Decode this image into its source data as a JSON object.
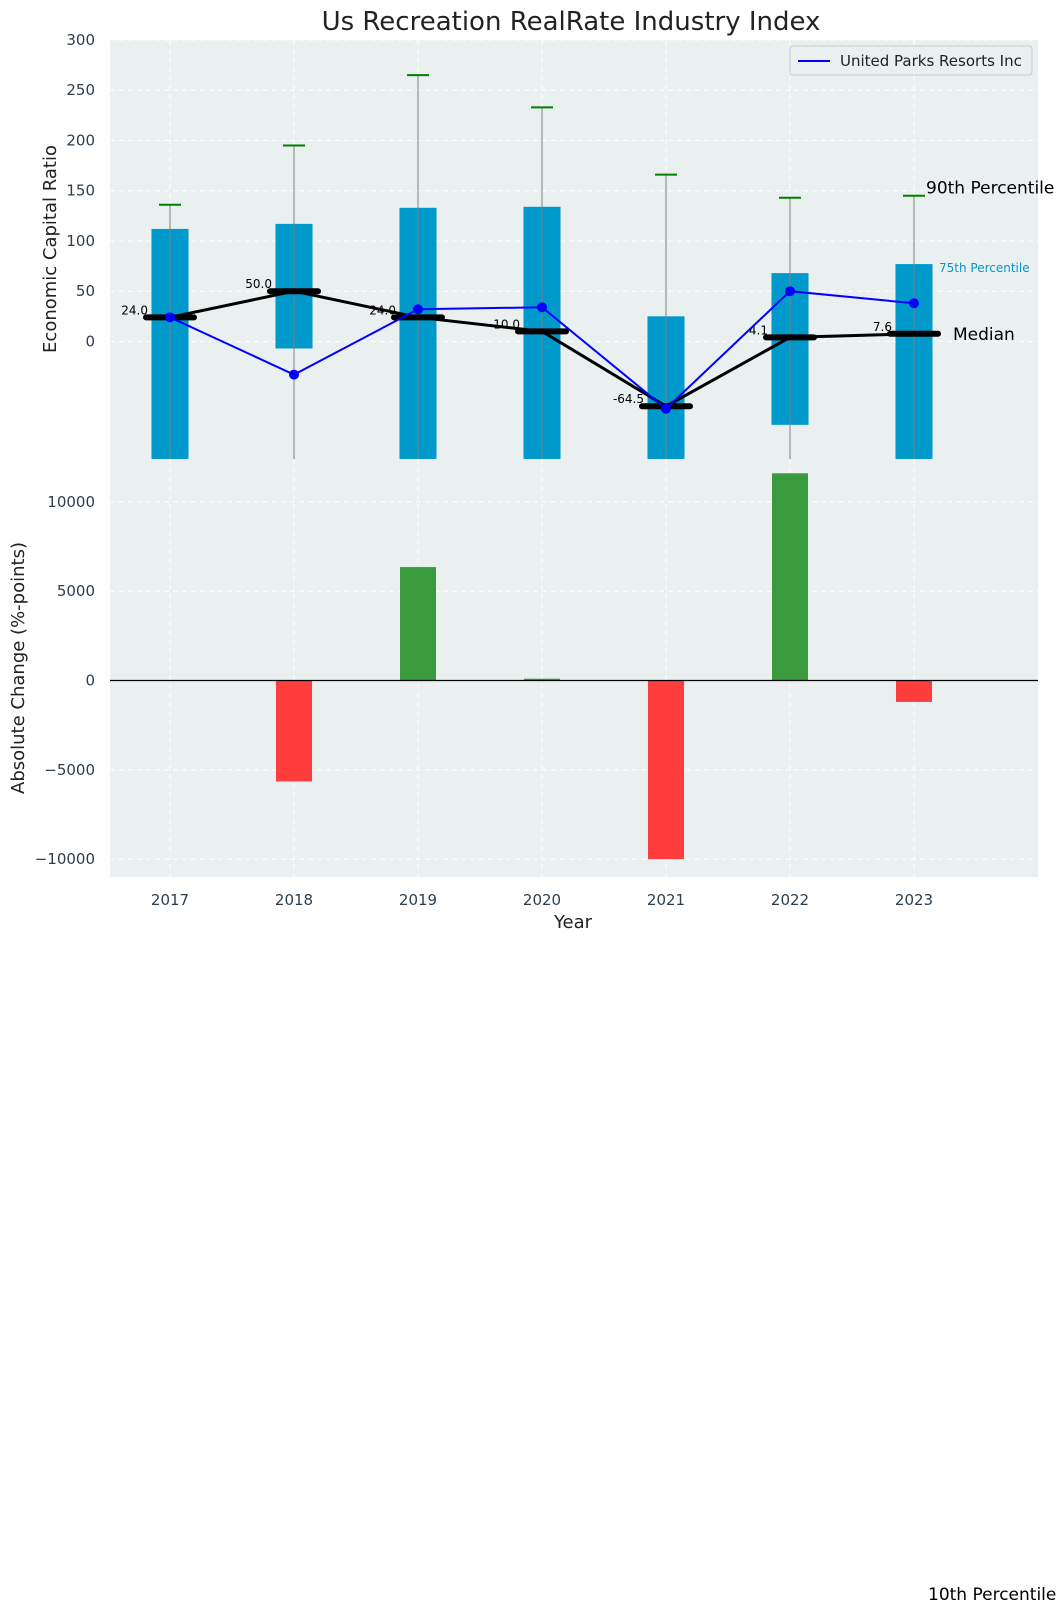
{
  "colors": {
    "panel_bg": "#EAEFF0",
    "grid": "#FFFFFF",
    "box": "#0099CC",
    "whisker": "#808080",
    "cap": "#008000",
    "median": "#000000",
    "company": "#0000FF",
    "positive": "#3A9B3D",
    "negative": "#FF3D3D",
    "tick_text": "#2C3E50",
    "label_75": "#0099CC"
  },
  "chart_data": [
    {
      "type": "box-line",
      "title": "Us Recreation RealRate Industry Index",
      "ylabel": "Economic Capital Ratio",
      "xlabel": "",
      "ylim": [
        -117,
        300
      ],
      "yticks": [
        0,
        50,
        100,
        150,
        200,
        250,
        300
      ],
      "categories": [
        "2017",
        "2018",
        "2019",
        "2020",
        "2021",
        "2022",
        "2023"
      ],
      "p10": [
        -117,
        -117,
        -117,
        -117,
        -117,
        -117,
        -117
      ],
      "p25": [
        -117,
        -7,
        -117,
        -117,
        -117,
        -83,
        -117
      ],
      "median": [
        24.0,
        50.0,
        24.0,
        10.0,
        -64.5,
        4.1,
        7.6
      ],
      "median_labels": [
        "24.0",
        "50.0",
        "24.0",
        "10.0",
        "-64.5",
        "4.1",
        "7.6"
      ],
      "p75": [
        112,
        117,
        133,
        134,
        25,
        68,
        77
      ],
      "p90": [
        136,
        195,
        265,
        233,
        166,
        143,
        145
      ],
      "series": [
        {
          "name": "United Parks Resorts Inc",
          "values": [
            24,
            -33,
            32,
            34,
            -67,
            50,
            38
          ]
        }
      ],
      "legend": {
        "position": "top-right",
        "entries": [
          "United Parks Resorts Inc"
        ]
      },
      "annotations": {
        "p90": "90th Percentile",
        "p75": "75th Percentile",
        "median": "Median",
        "p10": "10th Percentile"
      },
      "grid": true
    },
    {
      "type": "bar",
      "title": "",
      "ylabel": "Absolute Change (%-points)",
      "xlabel": "Year",
      "ylim": [
        -11000,
        12400
      ],
      "yticks": [
        -10000,
        -5000,
        0,
        5000,
        10000
      ],
      "ytick_labels": [
        "−10000",
        "−5000",
        "0",
        "5000",
        "10000"
      ],
      "categories": [
        "2017",
        "2018",
        "2019",
        "2020",
        "2021",
        "2022",
        "2023"
      ],
      "values": [
        0,
        -5650,
        6350,
        100,
        -10000,
        11600,
        -1200
      ],
      "grid": true
    }
  ]
}
